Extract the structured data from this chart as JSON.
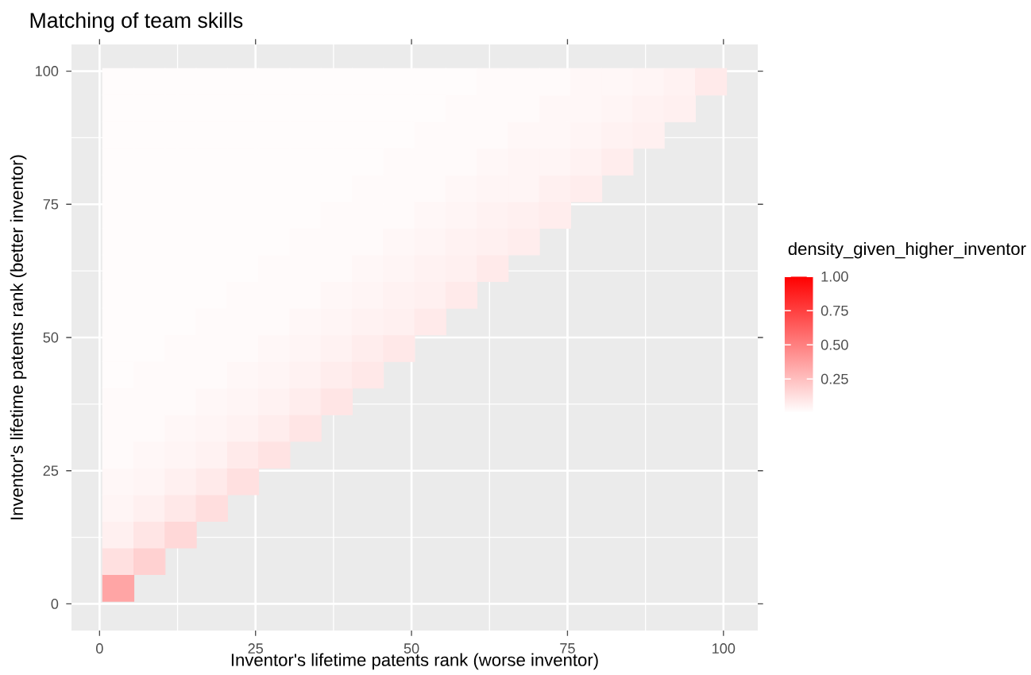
{
  "chart_data": {
    "type": "scatter",
    "title": "Matching of team skills",
    "xlabel": "Inventor's lifetime patents rank (worse inventor)",
    "ylabel": "Inventor's lifetime patents rank (better inventor)",
    "clabel": "density_given_higher_inventor",
    "marker": "square",
    "grid": true,
    "xlim": [
      -4.5,
      105.5
    ],
    "ylim": [
      -5,
      105
    ],
    "xticks": [
      0,
      25,
      50,
      75,
      100
    ],
    "yticks": [
      0,
      25,
      50,
      75,
      100
    ],
    "clim": [
      0,
      1
    ],
    "cticks": [
      {
        "value": 0.25,
        "label": "0.25"
      },
      {
        "value": 0.5,
        "label": "0.50"
      },
      {
        "value": 0.75,
        "label": "0.75"
      },
      {
        "value": 1,
        "label": "1.00"
      }
    ],
    "x": [
      3,
      3,
      3,
      3,
      3,
      3,
      3,
      3,
      3,
      3,
      3,
      3,
      3,
      3,
      3,
      3,
      3,
      3,
      3,
      3,
      8,
      8,
      8,
      8,
      8,
      8,
      8,
      8,
      8,
      8,
      8,
      8,
      8,
      8,
      8,
      8,
      8,
      8,
      8,
      13,
      13,
      13,
      13,
      13,
      13,
      13,
      13,
      13,
      13,
      13,
      13,
      13,
      13,
      13,
      13,
      13,
      13,
      18,
      18,
      18,
      18,
      18,
      18,
      18,
      18,
      18,
      18,
      18,
      18,
      18,
      18,
      18,
      18,
      18,
      23,
      23,
      23,
      23,
      23,
      23,
      23,
      23,
      23,
      23,
      23,
      23,
      23,
      23,
      23,
      23,
      28,
      28,
      28,
      28,
      28,
      28,
      28,
      28,
      28,
      28,
      28,
      28,
      28,
      28,
      28,
      33,
      33,
      33,
      33,
      33,
      33,
      33,
      33,
      33,
      33,
      33,
      33,
      33,
      33,
      38,
      38,
      38,
      38,
      38,
      38,
      38,
      38,
      38,
      38,
      38,
      38,
      38,
      43,
      43,
      43,
      43,
      43,
      43,
      43,
      43,
      43,
      43,
      43,
      43,
      48,
      48,
      48,
      48,
      48,
      48,
      48,
      48,
      48,
      48,
      48,
      53,
      53,
      53,
      53,
      53,
      53,
      53,
      53,
      53,
      53,
      58,
      58,
      58,
      58,
      58,
      58,
      58,
      58,
      58,
      63,
      63,
      63,
      63,
      63,
      63,
      63,
      63,
      68,
      68,
      68,
      68,
      68,
      68,
      68,
      73,
      73,
      73,
      73,
      73,
      73,
      78,
      78,
      78,
      78,
      78,
      83,
      83,
      83,
      83,
      88,
      88,
      88,
      93,
      93,
      98
    ],
    "values": [
      3,
      8,
      13,
      18,
      23,
      28,
      33,
      38,
      43,
      48,
      53,
      58,
      63,
      68,
      73,
      78,
      83,
      88,
      93,
      98,
      8,
      13,
      18,
      23,
      28,
      33,
      38,
      43,
      48,
      53,
      58,
      63,
      68,
      73,
      78,
      83,
      88,
      93,
      98,
      13,
      18,
      23,
      28,
      33,
      38,
      43,
      48,
      53,
      58,
      63,
      68,
      73,
      78,
      83,
      88,
      93,
      98,
      18,
      23,
      28,
      33,
      38,
      43,
      48,
      53,
      58,
      63,
      68,
      73,
      78,
      83,
      88,
      93,
      98,
      23,
      28,
      33,
      38,
      43,
      48,
      53,
      58,
      63,
      68,
      73,
      78,
      83,
      88,
      93,
      98,
      28,
      33,
      38,
      43,
      48,
      53,
      58,
      63,
      68,
      73,
      78,
      83,
      88,
      93,
      98,
      33,
      38,
      43,
      48,
      53,
      58,
      63,
      68,
      73,
      78,
      83,
      88,
      93,
      98,
      38,
      43,
      48,
      53,
      58,
      63,
      68,
      73,
      78,
      83,
      88,
      93,
      98,
      43,
      48,
      53,
      58,
      63,
      68,
      73,
      78,
      83,
      88,
      93,
      98,
      48,
      53,
      58,
      63,
      68,
      73,
      78,
      83,
      88,
      93,
      98,
      53,
      58,
      63,
      68,
      73,
      78,
      83,
      88,
      93,
      98,
      58,
      63,
      68,
      73,
      78,
      83,
      88,
      93,
      98,
      63,
      68,
      73,
      78,
      83,
      88,
      93,
      98,
      68,
      73,
      78,
      83,
      88,
      93,
      98,
      73,
      78,
      83,
      88,
      93,
      98,
      78,
      83,
      88,
      93,
      98,
      83,
      88,
      93,
      98,
      88,
      93,
      98,
      93,
      98,
      98
    ],
    "cvalues": [
      0.35,
      0.12,
      0.06,
      0.04,
      0.03,
      0.02,
      0.02,
      0.02,
      0.01,
      0.01,
      0.01,
      0.01,
      0.01,
      0.01,
      0.01,
      0.01,
      0.01,
      0.01,
      0.01,
      0.01,
      0.18,
      0.1,
      0.06,
      0.04,
      0.03,
      0.02,
      0.02,
      0.02,
      0.01,
      0.01,
      0.01,
      0.01,
      0.01,
      0.01,
      0.01,
      0.01,
      0.01,
      0.01,
      0.01,
      0.15,
      0.09,
      0.06,
      0.04,
      0.03,
      0.02,
      0.02,
      0.02,
      0.01,
      0.01,
      0.01,
      0.01,
      0.01,
      0.01,
      0.01,
      0.01,
      0.01,
      0.01,
      0.13,
      0.08,
      0.05,
      0.04,
      0.03,
      0.02,
      0.02,
      0.02,
      0.01,
      0.01,
      0.01,
      0.01,
      0.01,
      0.01,
      0.01,
      0.01,
      0.01,
      0.12,
      0.08,
      0.05,
      0.04,
      0.03,
      0.02,
      0.02,
      0.02,
      0.01,
      0.01,
      0.01,
      0.01,
      0.01,
      0.01,
      0.01,
      0.01,
      0.11,
      0.07,
      0.05,
      0.04,
      0.03,
      0.02,
      0.02,
      0.02,
      0.01,
      0.01,
      0.01,
      0.01,
      0.01,
      0.01,
      0.01,
      0.1,
      0.07,
      0.05,
      0.04,
      0.03,
      0.02,
      0.02,
      0.02,
      0.01,
      0.01,
      0.01,
      0.01,
      0.01,
      0.01,
      0.1,
      0.07,
      0.05,
      0.04,
      0.03,
      0.02,
      0.02,
      0.02,
      0.01,
      0.01,
      0.01,
      0.01,
      0.01,
      0.09,
      0.07,
      0.05,
      0.04,
      0.03,
      0.02,
      0.02,
      0.02,
      0.01,
      0.01,
      0.01,
      0.01,
      0.09,
      0.06,
      0.05,
      0.04,
      0.03,
      0.02,
      0.02,
      0.02,
      0.01,
      0.01,
      0.01,
      0.08,
      0.06,
      0.05,
      0.04,
      0.03,
      0.02,
      0.02,
      0.02,
      0.01,
      0.01,
      0.08,
      0.06,
      0.05,
      0.04,
      0.03,
      0.02,
      0.02,
      0.02,
      0.01,
      0.08,
      0.06,
      0.05,
      0.04,
      0.03,
      0.02,
      0.02,
      0.02,
      0.07,
      0.06,
      0.04,
      0.04,
      0.03,
      0.02,
      0.02,
      0.07,
      0.06,
      0.04,
      0.03,
      0.03,
      0.02,
      0.07,
      0.05,
      0.04,
      0.03,
      0.03,
      0.07,
      0.05,
      0.04,
      0.03,
      0.06,
      0.05,
      0.04,
      0.06,
      0.05,
      0.08
    ]
  }
}
